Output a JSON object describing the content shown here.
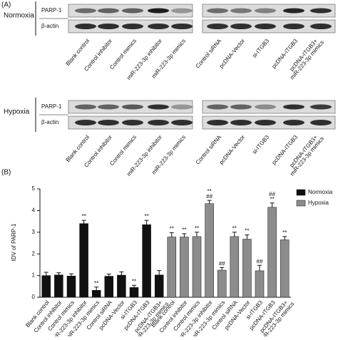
{
  "panel_a": {
    "label": "(A)",
    "blots": [
      {
        "condition": "Normoxia",
        "rows": [
          "PARP-1",
          "β-actin"
        ],
        "lanes_left": [
          "Blank control",
          "Control inhibitor",
          "Control mimics",
          "miR-223-3p inhibitor",
          "miR-223-3p mimics"
        ],
        "lanes_right": [
          "Control siRNA",
          "pcDNA-Vector",
          "si-ITGB3",
          "pcDNA-ITGB3",
          [
            "pcDNA-ITGB3+",
            "miR-223-3p mimics"
          ]
        ]
      },
      {
        "condition": "Hypoxia",
        "rows": [
          "PARP-1",
          "β-actin"
        ],
        "lanes_left": [
          "Blank control",
          "Control inhibitor",
          "Control mimics",
          "miR-223-3p inhibitor",
          "miR-223-3p mimics"
        ],
        "lanes_right": [
          "Control siRNA",
          "pcDNA-Vector",
          "si-ITGB3",
          "pcDNA-ITGB3",
          [
            "pcDNA-ITGB3+",
            "miR-223-3p mimics"
          ]
        ]
      }
    ]
  },
  "chart_data": {
    "type": "bar",
    "panel_label": "(B)",
    "y_label": "IDV of PARP-1",
    "categories": [
      "Blank control",
      "Control inhibitor",
      "Control mimics",
      "miR-223-3p inhibitor",
      "miR-223-3p mimics",
      "Control siRNA",
      "pcDNA-Vector",
      "si-ITGB3",
      "pcDNA-ITGB3",
      [
        "pcDNA-ITGB3+",
        "miR-223-3p mimics"
      ],
      "Blank control",
      "Control inhibitor",
      "Control mimics",
      "miR-223-3p inhibitor",
      "miR-223-3p mimics",
      "Control siRNA",
      "pcDNA-Vector",
      "si-ITGB3",
      "pcDNA-ITGB3",
      [
        "pcDNA-ITGB3+",
        "miR-223-3p mimics"
      ]
    ],
    "series": [
      {
        "name": "Normoxia",
        "color": "#111111",
        "values": [
          1.0,
          1.03,
          0.98,
          3.4,
          0.32,
          0.97,
          1.02,
          0.45,
          3.35,
          1.03,
          null,
          null,
          null,
          null,
          null,
          null,
          null,
          null,
          null,
          null
        ],
        "errors": [
          0.15,
          0.1,
          0.1,
          0.15,
          0.15,
          0.1,
          0.15,
          0.1,
          0.2,
          0.2,
          null,
          null,
          null,
          null,
          null,
          null,
          null,
          null,
          null,
          null
        ],
        "annotations": [
          null,
          null,
          null,
          [
            "**"
          ],
          [
            "**"
          ],
          null,
          null,
          [
            "**"
          ],
          [
            "**"
          ],
          null,
          null,
          null,
          null,
          null,
          null,
          null,
          null,
          null,
          null,
          null
        ]
      },
      {
        "name": "Hypoxia",
        "color": "#8c8c8c",
        "values": [
          null,
          null,
          null,
          null,
          null,
          null,
          null,
          null,
          null,
          null,
          2.78,
          2.78,
          2.8,
          4.32,
          1.25,
          2.8,
          2.68,
          1.22,
          4.15,
          2.65
        ],
        "errors": [
          null,
          null,
          null,
          null,
          null,
          null,
          null,
          null,
          null,
          null,
          0.2,
          0.15,
          0.2,
          0.15,
          0.12,
          0.2,
          0.2,
          0.25,
          0.2,
          0.15
        ],
        "annotations": [
          null,
          null,
          null,
          null,
          null,
          null,
          null,
          null,
          null,
          null,
          [
            "**"
          ],
          [
            "**"
          ],
          [
            "**"
          ],
          [
            "**",
            "##"
          ],
          [
            "##"
          ],
          [
            "**"
          ],
          [
            "**"
          ],
          [
            "##"
          ],
          [
            "##",
            "**"
          ],
          [
            "**"
          ]
        ]
      }
    ],
    "ylim": [
      0,
      5
    ],
    "yticks": [
      0,
      1,
      2,
      3,
      4,
      5
    ],
    "legend": "upper right"
  }
}
